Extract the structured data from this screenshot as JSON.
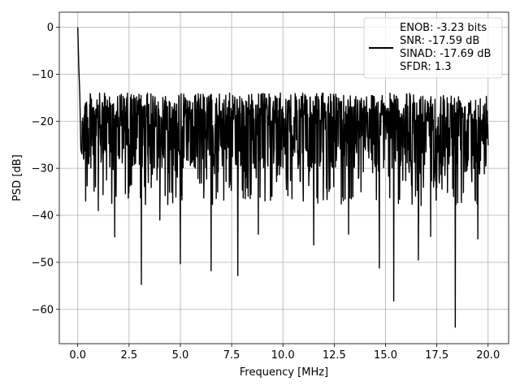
{
  "chart_data": {
    "type": "line",
    "xlabel": "Frequency [MHz]",
    "ylabel": "PSD [dB]",
    "xlim": [
      -0.9,
      21.0
    ],
    "ylim": [
      -67.3,
      3.2
    ],
    "xticks": [
      0.0,
      2.5,
      5.0,
      7.5,
      10.0,
      12.5,
      15.0,
      17.5,
      20.0
    ],
    "xtick_labels": [
      "0.0",
      "2.5",
      "5.0",
      "7.5",
      "10.0",
      "12.5",
      "15.0",
      "17.5",
      "20.0"
    ],
    "yticks": [
      0,
      -10,
      -20,
      -30,
      -40,
      -50,
      -60
    ],
    "ytick_labels": [
      "0",
      "−10",
      "−20",
      "−30",
      "−40",
      "−50",
      "−60"
    ],
    "grid": true,
    "legend_position": "top-right",
    "legend_entries": [
      "ENOB: -3.23 bits",
      "SNR: -17.59 dB",
      "SINAD: -17.69 dB",
      "SFDR: 1.3"
    ],
    "series": [
      {
        "color": "#000000",
        "x_range": [
          0.0,
          20.0
        ],
        "y_band": [
          -30,
          -14
        ],
        "peaks": [
          [
            0.0,
            0.0
          ],
          [
            0.05,
            -8.5
          ],
          [
            0.1,
            -14.5
          ],
          [
            0.15,
            -26.0
          ]
        ],
        "dips": [
          [
            1.0,
            -39.0
          ],
          [
            1.8,
            -44.6
          ],
          [
            3.1,
            -54.7
          ],
          [
            4.0,
            -41.0
          ],
          [
            5.0,
            -50.3
          ],
          [
            6.5,
            -51.8
          ],
          [
            7.8,
            -52.8
          ],
          [
            8.8,
            -44.0
          ],
          [
            11.5,
            -46.3
          ],
          [
            13.2,
            -44.0
          ],
          [
            14.7,
            -51.2
          ],
          [
            15.4,
            -58.2
          ],
          [
            16.6,
            -49.5
          ],
          [
            17.2,
            -44.5
          ],
          [
            18.4,
            -63.8
          ],
          [
            19.5,
            -45.0
          ]
        ]
      }
    ]
  }
}
